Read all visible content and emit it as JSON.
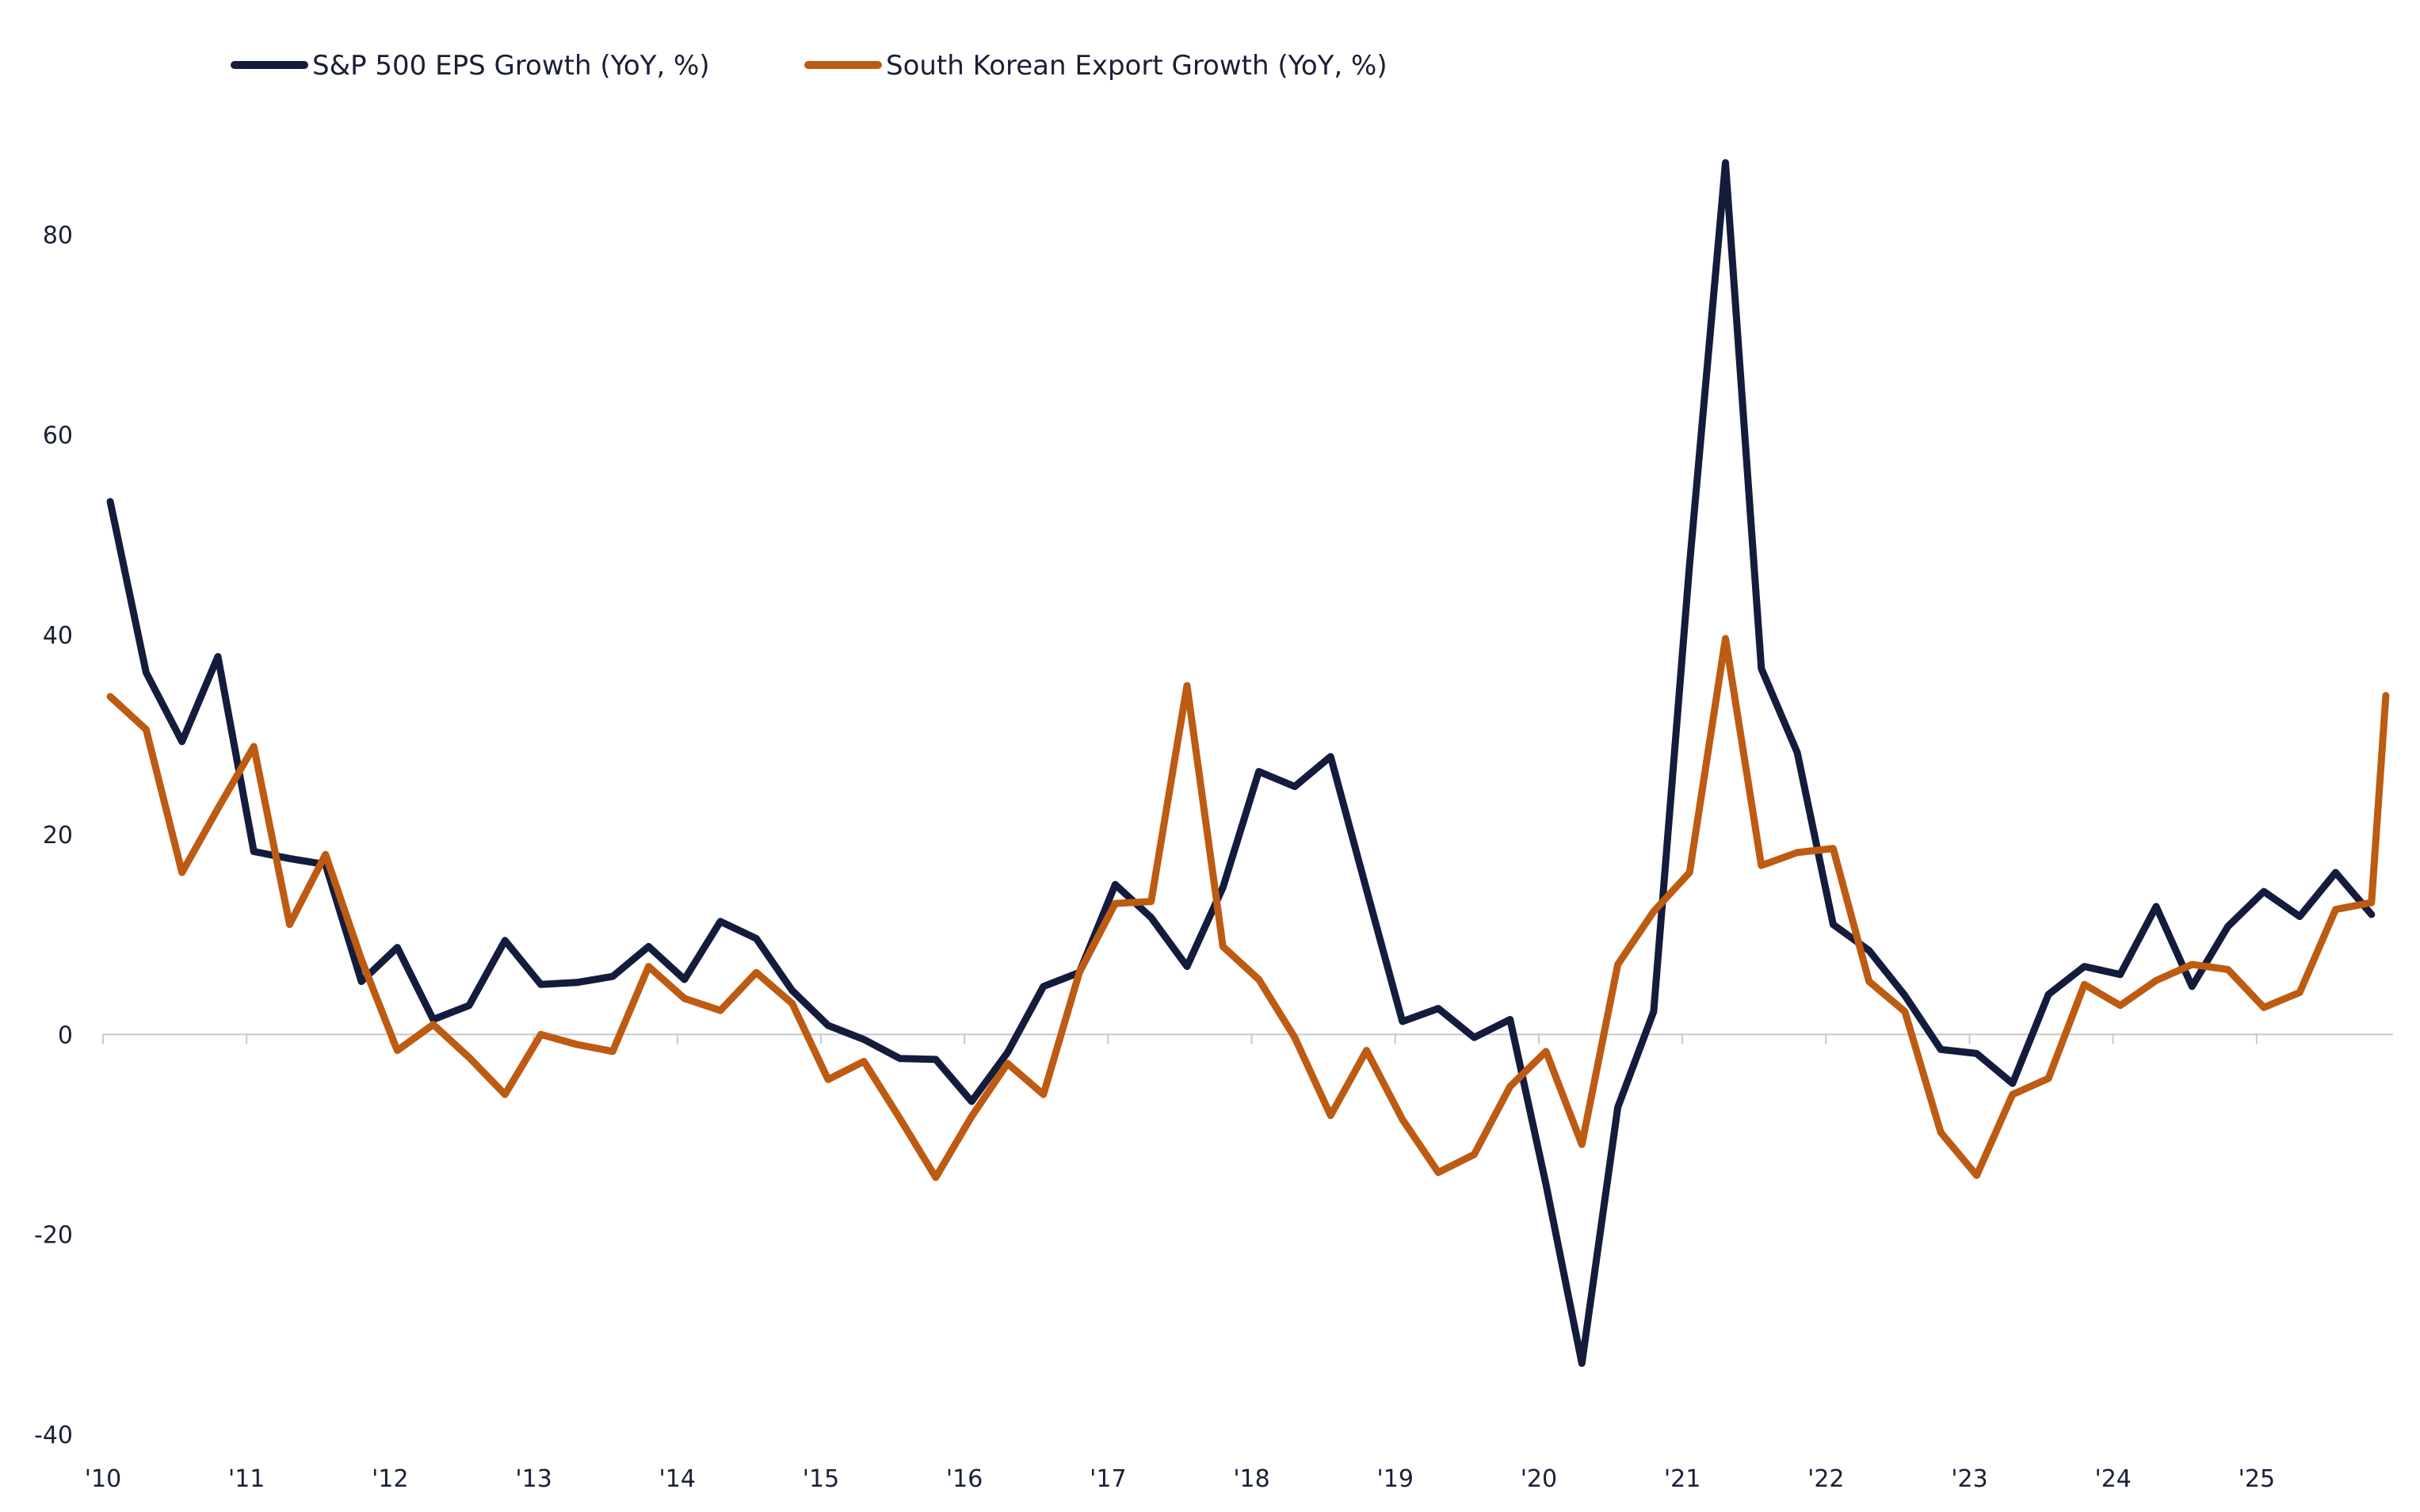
{
  "chart_data": {
    "type": "line",
    "title": "",
    "xlabel": "",
    "ylabel": "",
    "ylim": [
      -40,
      90
    ],
    "yticks": [
      -40,
      -20,
      0,
      20,
      40,
      60,
      80
    ],
    "ytick_labels": [
      "-40",
      "-20",
      "0",
      "20",
      "40",
      "60",
      "80"
    ],
    "xlim": [
      2010.0,
      2025.95
    ],
    "xticks": [
      2010,
      2011,
      2012,
      2013,
      2014,
      2015,
      2016,
      2017,
      2018,
      2019,
      2020,
      2021,
      2022,
      2023,
      2024,
      2025
    ],
    "xtick_labels": [
      "'10",
      "'11",
      "'12",
      "'13",
      "'14",
      "'15",
      "'16",
      "'17",
      "'18",
      "'19",
      "'20",
      "'21",
      "'22",
      "'23",
      "'24",
      "'25"
    ],
    "grid": false,
    "zero_line": true,
    "legend_position": "top-left",
    "series": [
      {
        "name": "S&P 500 EPS Growth (YoY, %)",
        "color": "#141c3d",
        "x": [
          2010.05,
          2010.3,
          2010.55,
          2010.8,
          2011.05,
          2011.3,
          2011.55,
          2011.8,
          2012.05,
          2012.3,
          2012.55,
          2012.8,
          2013.05,
          2013.3,
          2013.55,
          2013.8,
          2014.05,
          2014.3,
          2014.55,
          2014.8,
          2015.05,
          2015.3,
          2015.55,
          2015.8,
          2016.05,
          2016.3,
          2016.55,
          2016.8,
          2017.05,
          2017.3,
          2017.55,
          2017.8,
          2018.05,
          2018.3,
          2018.55,
          2018.8,
          2019.05,
          2019.3,
          2019.55,
          2019.8,
          2020.05,
          2020.3,
          2020.55,
          2020.8,
          2021.05,
          2021.3,
          2021.55,
          2021.8,
          2022.05,
          2022.3,
          2022.55,
          2022.8,
          2023.05,
          2023.3,
          2023.55,
          2023.8,
          2024.05,
          2024.3,
          2024.55,
          2024.8,
          2025.05,
          2025.3,
          2025.55,
          2025.8
        ],
        "values": [
          53.3,
          36.2,
          29.3,
          37.8,
          18.3,
          17.6,
          17.0,
          5.3,
          8.7,
          1.5,
          2.9,
          9.4,
          5.0,
          5.2,
          5.8,
          8.8,
          5.5,
          11.3,
          9.6,
          4.4,
          0.9,
          -0.5,
          -2.4,
          -2.5,
          -6.7,
          -1.8,
          4.8,
          6.2,
          15.0,
          11.7,
          6.8,
          14.7,
          26.3,
          24.8,
          27.8,
          14.5,
          1.3,
          2.6,
          -0.3,
          1.5,
          -15.0,
          -32.9,
          -7.3,
          2.3,
          47.0,
          87.2,
          36.6,
          28.2,
          11.0,
          8.4,
          3.9,
          -1.5,
          -1.9,
          -4.9,
          4.0,
          6.8,
          6.0,
          12.8,
          4.8,
          10.8,
          14.3,
          11.8,
          16.2,
          12.0
        ]
      },
      {
        "name": "South Korean Export Growth (YoY, %)",
        "color": "#bd5b12",
        "x": [
          2010.05,
          2010.3,
          2010.55,
          2010.8,
          2011.05,
          2011.3,
          2011.55,
          2011.8,
          2012.05,
          2012.3,
          2012.55,
          2012.8,
          2013.05,
          2013.3,
          2013.55,
          2013.8,
          2014.05,
          2014.3,
          2014.55,
          2014.8,
          2015.05,
          2015.3,
          2015.55,
          2015.8,
          2016.05,
          2016.3,
          2016.55,
          2016.8,
          2017.05,
          2017.3,
          2017.55,
          2017.8,
          2018.05,
          2018.3,
          2018.55,
          2018.8,
          2019.05,
          2019.3,
          2019.55,
          2019.8,
          2020.05,
          2020.3,
          2020.55,
          2020.8,
          2021.05,
          2021.3,
          2021.55,
          2021.8,
          2022.05,
          2022.3,
          2022.55,
          2022.8,
          2023.05,
          2023.3,
          2023.55,
          2023.8,
          2024.05,
          2024.3,
          2024.55,
          2024.8,
          2025.05,
          2025.3,
          2025.55,
          2025.8,
          2025.9
        ],
        "values": [
          33.8,
          30.5,
          16.2,
          22.6,
          28.8,
          11.0,
          18.0,
          7.5,
          -1.6,
          1.0,
          -2.3,
          -6.0,
          0.0,
          -1.0,
          -1.7,
          6.8,
          3.6,
          2.4,
          6.2,
          3.1,
          -4.5,
          -2.7,
          -8.4,
          -14.3,
          -8.2,
          -2.9,
          -6.0,
          6.2,
          13.1,
          13.3,
          34.9,
          8.8,
          5.5,
          -0.3,
          -8.1,
          -1.6,
          -8.5,
          -13.8,
          -12.0,
          -5.2,
          -1.7,
          -11.0,
          7.0,
          12.3,
          16.2,
          39.6,
          16.9,
          18.2,
          18.6,
          5.3,
          2.3,
          -9.8,
          -14.1,
          -6.0,
          -4.4,
          5.0,
          2.9,
          5.4,
          7.0,
          6.5,
          2.7,
          4.2,
          12.5,
          13.2,
          33.9
        ]
      }
    ]
  }
}
